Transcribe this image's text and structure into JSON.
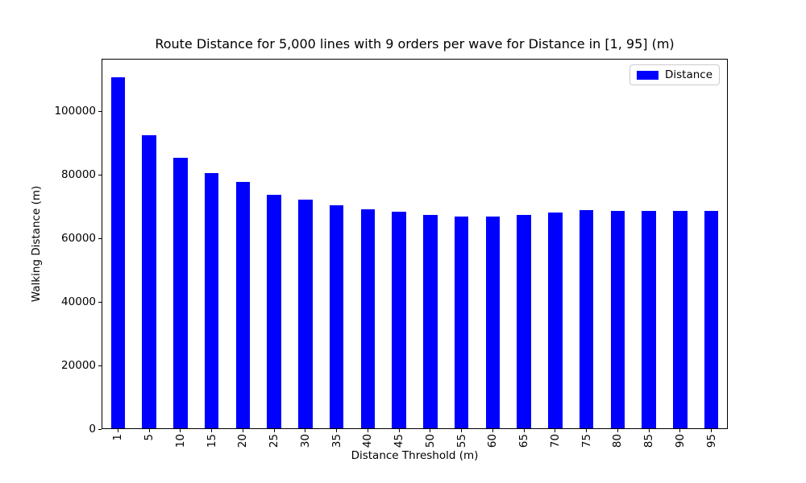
{
  "chart_data": {
    "type": "bar",
    "title": "Route Distance for 5,000 lines with 9 orders per wave for Distance in [1, 95] (m)",
    "xlabel": "Distance Threshold (m)",
    "ylabel": "Walking Distance (m)",
    "categories": [
      "1",
      "5",
      "10",
      "15",
      "20",
      "25",
      "30",
      "35",
      "40",
      "45",
      "50",
      "55",
      "60",
      "65",
      "70",
      "75",
      "80",
      "85",
      "90",
      "95"
    ],
    "values": [
      111000,
      92700,
      85400,
      80700,
      77900,
      73800,
      72200,
      70400,
      69300,
      68400,
      67500,
      67000,
      67000,
      67400,
      68300,
      69000,
      68600,
      68600,
      68600,
      68700
    ],
    "yticks": [
      0,
      20000,
      40000,
      60000,
      80000,
      100000
    ],
    "ylim": [
      0,
      116500
    ],
    "grid": false,
    "legend": {
      "label": "Distance",
      "position": "upper right"
    },
    "bar_color": "#0000ff",
    "spine_color": "#000000",
    "text_color": "#000000",
    "legend_border_color": "#cccccc",
    "background_color": "#ffffff",
    "xtick_rotation_deg": 90
  }
}
